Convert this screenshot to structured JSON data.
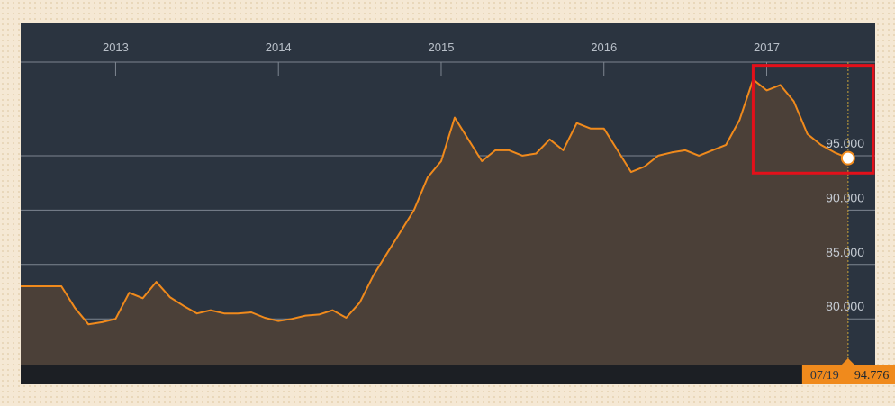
{
  "colors": {
    "panel_bg": "#2b3440",
    "line": "#f08a1c",
    "area_fill": "#4b4038",
    "grid": "#7d8590",
    "footer_bar": "#1c1f24",
    "readout_bg": "#f08a1c",
    "highlight_box": "#e3101a"
  },
  "chart_data": {
    "type": "area",
    "title": "",
    "xlabel": "",
    "ylabel": "",
    "x_ticks": [
      "2013",
      "2014",
      "2015",
      "2016",
      "2017"
    ],
    "y_ticks": [
      "80.000",
      "85.000",
      "90.000",
      "95.000"
    ],
    "ylim": [
      75.8,
      103.6
    ],
    "xlim": [
      "2012-06",
      "2017-09"
    ],
    "grid": "horizontal",
    "series": [
      {
        "name": "",
        "x": [
          "2012-09",
          "2012-10",
          "2012-11",
          "2012-12",
          "2013-01",
          "2013-02",
          "2013-03",
          "2013-04",
          "2013-05",
          "2013-06",
          "2013-07",
          "2013-08",
          "2013-09",
          "2013-10",
          "2013-11",
          "2013-12",
          "2014-01",
          "2014-02",
          "2014-03",
          "2014-04",
          "2014-05",
          "2014-06",
          "2014-07",
          "2014-08",
          "2014-09",
          "2014-10",
          "2014-11",
          "2014-12",
          "2015-01",
          "2015-02",
          "2015-03",
          "2015-04",
          "2015-05",
          "2015-06",
          "2015-07",
          "2015-08",
          "2015-09",
          "2015-10",
          "2015-11",
          "2015-12",
          "2016-01",
          "2016-02",
          "2016-03",
          "2016-04",
          "2016-05",
          "2016-06",
          "2016-07",
          "2016-08",
          "2016-09",
          "2016-10",
          "2016-11",
          "2016-12",
          "2017-01",
          "2017-02",
          "2017-03",
          "2017-04",
          "2017-05",
          "2017-06",
          "2017-07"
        ],
        "values": [
          83.0,
          81.0,
          79.5,
          79.7,
          80.0,
          82.4,
          81.9,
          83.4,
          82.0,
          81.2,
          80.5,
          80.8,
          80.5,
          80.5,
          80.6,
          80.1,
          79.8,
          80.0,
          80.3,
          80.4,
          80.8,
          80.1,
          81.5,
          84.0,
          86.0,
          88.0,
          90.0,
          93.0,
          94.5,
          98.5,
          96.5,
          94.5,
          95.5,
          95.5,
          95.0,
          95.2,
          96.5,
          95.5,
          98.0,
          97.5,
          97.5,
          95.5,
          93.5,
          94.0,
          95.0,
          95.3,
          95.5,
          95.0,
          95.5,
          96.0,
          98.3,
          102.0,
          101.0,
          101.5,
          100.0,
          97.0,
          96.0,
          95.3,
          94.776
        ]
      }
    ],
    "annotations": [
      {
        "type": "highlight_box",
        "x_from": "2016-12",
        "x_to": "2017-09",
        "y_from": 93.4,
        "y_to": 103.3
      }
    ]
  },
  "readout": {
    "date": "07/19",
    "value": "94.776"
  }
}
